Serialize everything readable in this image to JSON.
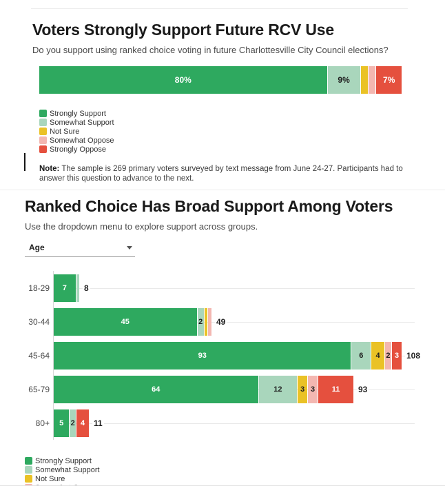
{
  "colors": {
    "strongly_support": "#2ea95f",
    "somewhat_support": "#a9d6bc",
    "not_sure": "#eac226",
    "somewhat_oppose": "#f3b7b1",
    "strongly_oppose": "#e5503e",
    "gridline": "#e9e9e9",
    "axis": "#d8d8d8",
    "label_on_dark": "#ffffff",
    "label_on_light": "#1f1f1f"
  },
  "legend_items": [
    "Strongly Support",
    "Somewhat Support",
    "Not Sure",
    "Somewhat Oppose",
    "Strongly Oppose"
  ],
  "chart1": {
    "title": "Voters Strongly Support Future RCV Use",
    "subtitle": "Do you support using ranked choice voting in future Charlottesville City Council elections?",
    "note_label": "Note:",
    "note_text": " The sample is 269 primary voters surveyed by text message from June 24-27. Participants had to answer this question to advance to the next."
  },
  "chart2": {
    "title": "Ranked Choice Has Broad Support Among Voters",
    "subtitle": "Use the dropdown menu to explore support across groups.",
    "dropdown_value": "Age"
  },
  "chart_data": [
    {
      "type": "bar",
      "stacked": true,
      "orientation": "horizontal",
      "title": "Voters Strongly Support Future RCV Use",
      "units": "percent",
      "xlim": [
        0,
        100
      ],
      "legend_position": "below",
      "series_names": [
        "Strongly Support",
        "Somewhat Support",
        "Not Sure",
        "Somewhat Oppose",
        "Strongly Oppose"
      ],
      "rows": [
        {
          "label": "",
          "values": [
            80,
            9,
            2,
            2,
            7
          ],
          "segment_labels": [
            "80%",
            "9%",
            null,
            null,
            "7%"
          ]
        }
      ]
    },
    {
      "type": "bar",
      "stacked": true,
      "orientation": "horizontal",
      "title": "Ranked Choice Has Broad Support Among Voters",
      "group_by": "Age",
      "units": "respondents",
      "xlim": [
        0,
        108
      ],
      "grid": true,
      "legend_position": "below",
      "series_names": [
        "Strongly Support",
        "Somewhat Support",
        "Not Sure",
        "Somewhat Oppose",
        "Strongly Oppose"
      ],
      "rows": [
        {
          "label": "18-29",
          "values": [
            7,
            1,
            0,
            0,
            0
          ],
          "segment_labels": [
            "7",
            null,
            null,
            null,
            null
          ],
          "total": 8
        },
        {
          "label": "30-44",
          "values": [
            45,
            2,
            1,
            1,
            0
          ],
          "segment_labels": [
            "45",
            "2",
            null,
            null,
            null
          ],
          "total": 49
        },
        {
          "label": "45-64",
          "values": [
            93,
            6,
            4,
            2,
            3
          ],
          "segment_labels": [
            "93",
            "6",
            "4",
            "2",
            "3"
          ],
          "total": 108
        },
        {
          "label": "65-79",
          "values": [
            64,
            12,
            3,
            3,
            11
          ],
          "segment_labels": [
            "64",
            "12",
            "3",
            "3",
            "11"
          ],
          "total": 93
        },
        {
          "label": "80+",
          "values": [
            5,
            2,
            0,
            0,
            4
          ],
          "segment_labels": [
            "5",
            "2",
            null,
            null,
            "4"
          ],
          "total": 11
        }
      ]
    }
  ]
}
